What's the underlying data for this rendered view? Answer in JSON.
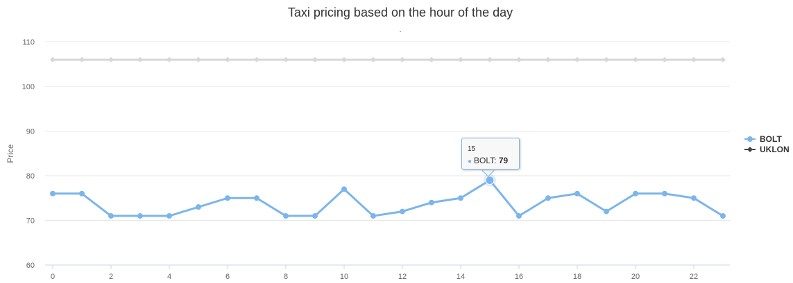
{
  "chart_data": {
    "type": "line",
    "title": "Taxi pricing based on the hour of the day",
    "subtitle": ".",
    "xlabel": "",
    "ylabel": "Price",
    "x": [
      0,
      1,
      2,
      3,
      4,
      5,
      6,
      7,
      8,
      9,
      10,
      11,
      12,
      13,
      14,
      15,
      16,
      17,
      18,
      19,
      20,
      21,
      22,
      23
    ],
    "xticks": [
      0,
      2,
      4,
      6,
      8,
      10,
      12,
      14,
      16,
      18,
      20,
      22
    ],
    "yticks": [
      60,
      70,
      80,
      90,
      100,
      110
    ],
    "ylim": [
      60,
      110
    ],
    "grid": true,
    "legend": "right",
    "series": [
      {
        "name": "BOLT",
        "color": "#7cb5ec",
        "marker": "circle",
        "values": [
          76,
          76,
          71,
          71,
          71,
          73,
          75,
          75,
          71,
          71,
          77,
          71,
          72,
          74,
          75,
          79,
          71,
          75,
          76,
          72,
          76,
          76,
          75,
          71
        ]
      },
      {
        "name": "UKLON",
        "color": "#434348",
        "marker": "diamond",
        "dimmed": true,
        "values": [
          106,
          106,
          106,
          106,
          106,
          106,
          106,
          106,
          106,
          106,
          106,
          106,
          106,
          106,
          106,
          106,
          106,
          106,
          106,
          106,
          106,
          106,
          106,
          106
        ]
      }
    ],
    "tooltip": {
      "x": "15",
      "series": "BOLT",
      "value": "79"
    }
  }
}
